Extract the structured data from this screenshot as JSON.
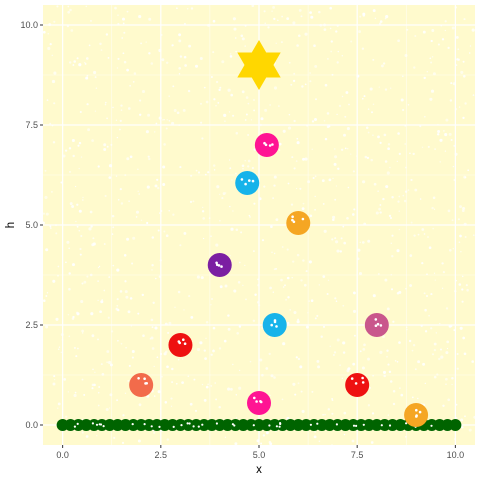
{
  "chart_data": {
    "type": "scatter",
    "xlabel": "x",
    "ylabel": "h",
    "xlim": [
      -0.5,
      10.5
    ],
    "ylim": [
      -0.5,
      10.5
    ],
    "x_ticks": [
      0,
      2.5,
      5,
      7.5,
      10
    ],
    "x_tick_labels": [
      "0.0",
      "2.5",
      "5.0",
      "7.5",
      "10.0"
    ],
    "y_ticks": [
      0,
      2.5,
      5,
      7.5,
      10
    ],
    "y_tick_labels": [
      "0.0",
      "2.5",
      "5.0",
      "7.5",
      "10.0"
    ],
    "grid": true,
    "background_color": "#FFFACD",
    "grid_color": "#FFFFFF",
    "series": [
      {
        "name": "ground",
        "color": "#006400",
        "x": [
          0,
          0.2,
          0.4,
          0.6,
          0.8,
          1.0,
          1.2,
          1.4,
          1.6,
          1.8,
          2.0,
          2.2,
          2.4,
          2.6,
          2.8,
          3.0,
          3.2,
          3.4,
          3.6,
          3.8,
          4.0,
          4.2,
          4.4,
          4.6,
          4.8,
          5.0,
          5.2,
          5.4,
          5.6,
          5.8,
          6.0,
          6.2,
          6.4,
          6.6,
          6.8,
          7.0,
          7.2,
          7.4,
          7.6,
          7.8,
          8.0,
          8.2,
          8.4,
          8.6,
          8.8,
          9.0,
          9.2,
          9.4,
          9.6,
          9.8,
          10.0
        ],
        "y": [
          0,
          0,
          0,
          0,
          0,
          0,
          0,
          0,
          0,
          0,
          0,
          0,
          0,
          0,
          0,
          0,
          0,
          0,
          0,
          0,
          0,
          0,
          0,
          0,
          0,
          0,
          0,
          0,
          0,
          0,
          0,
          0,
          0,
          0,
          0,
          0,
          0,
          0,
          0,
          0,
          0,
          0,
          0,
          0,
          0,
          0,
          0,
          0,
          0,
          0,
          0
        ]
      },
      {
        "name": "ornaments",
        "points": [
          {
            "x": 2.0,
            "y": 1.0,
            "color": "#F26B4B"
          },
          {
            "x": 3.0,
            "y": 2.0,
            "color": "#EE1111"
          },
          {
            "x": 4.0,
            "y": 4.0,
            "color": "#7B1FA2"
          },
          {
            "x": 4.7,
            "y": 6.05,
            "color": "#17B3EA"
          },
          {
            "x": 5.2,
            "y": 7.0,
            "color": "#FF1493"
          },
          {
            "x": 6.0,
            "y": 5.05,
            "color": "#F5A623"
          },
          {
            "x": 5.4,
            "y": 2.5,
            "color": "#17B3EA"
          },
          {
            "x": 8.0,
            "y": 2.5,
            "color": "#C9578C"
          },
          {
            "x": 5.0,
            "y": 0.55,
            "color": "#FF1493"
          },
          {
            "x": 7.5,
            "y": 1.0,
            "color": "#EE1111"
          },
          {
            "x": 9.0,
            "y": 0.25,
            "color": "#F5A623"
          }
        ]
      },
      {
        "name": "star",
        "color": "#FFD700",
        "x": [
          5.0
        ],
        "y": [
          9.0
        ]
      }
    ]
  }
}
